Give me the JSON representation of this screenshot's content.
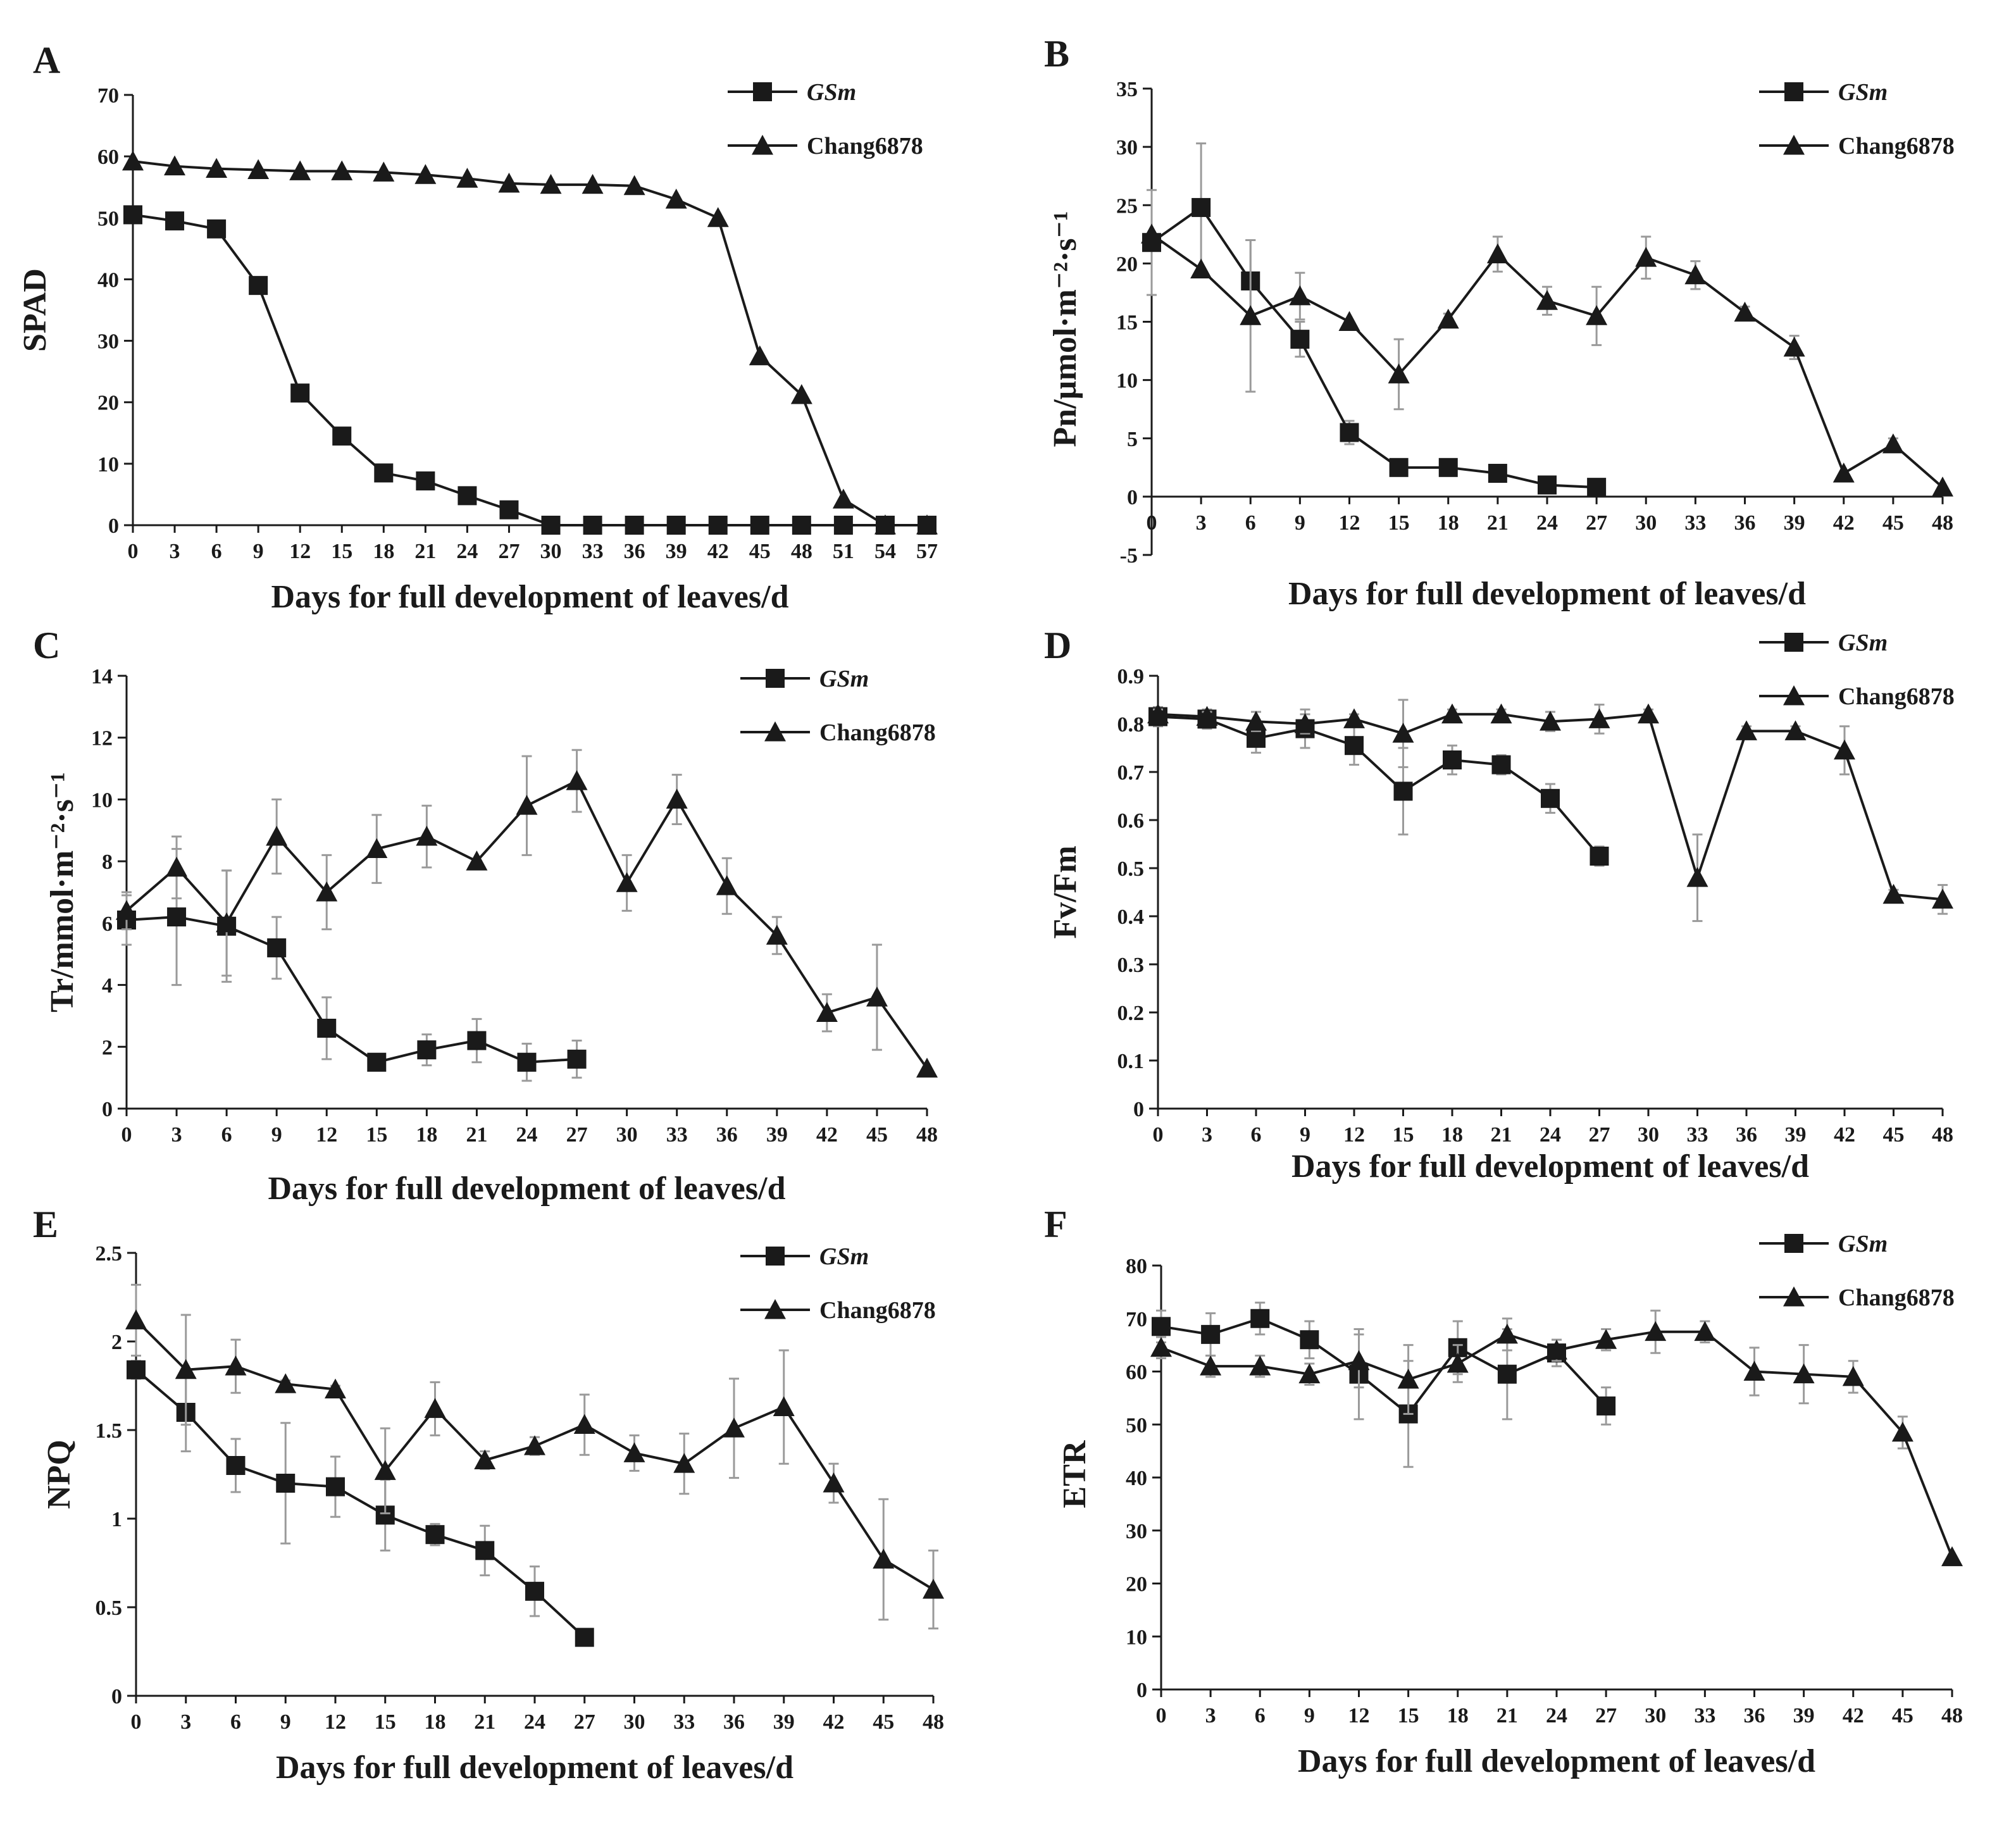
{
  "figure": {
    "series_names": {
      "gsm": "GSm",
      "chang": "Chang6878"
    },
    "colors": {
      "line": "#1a1a1a",
      "error": "#9a9a9a",
      "axis": "#1a1a1a"
    },
    "marker_names": {
      "gsm": "square-marker",
      "chang": "triangle-marker"
    }
  },
  "chart_data": [
    {
      "id": "A",
      "letter": "A",
      "type": "line",
      "xlabel": "Days for full development of leaves/d",
      "ylabel": "SPAD",
      "x_ticks": [
        0,
        3,
        6,
        9,
        12,
        15,
        18,
        21,
        24,
        27,
        30,
        33,
        36,
        39,
        42,
        45,
        48,
        51,
        54,
        57
      ],
      "xlim": [
        0,
        57
      ],
      "y_ticks": [
        0,
        10,
        20,
        30,
        40,
        50,
        60,
        70
      ],
      "y_tick_labels": [
        "0",
        "10",
        "20",
        "30",
        "40",
        "50",
        "60",
        "70"
      ],
      "ylim": [
        0,
        70
      ],
      "legend": [
        "GSm",
        "Chang6878"
      ],
      "series": [
        {
          "name": "GSm",
          "marker": "square",
          "x": [
            0,
            3,
            6,
            9,
            12,
            15,
            18,
            21,
            24,
            27,
            30,
            33,
            36,
            39,
            42,
            45,
            48,
            51,
            54,
            57
          ],
          "values": [
            50.5,
            49.5,
            48.2,
            39,
            21.5,
            14.5,
            8.5,
            7.2,
            4.8,
            2.5,
            0,
            0,
            0,
            0,
            0,
            0,
            0,
            0,
            0,
            0
          ],
          "errors": [
            0,
            0,
            0,
            0,
            0,
            0,
            0,
            0,
            0,
            0,
            0,
            0,
            0,
            0,
            0,
            0,
            0,
            0,
            0,
            0
          ]
        },
        {
          "name": "Chang6878",
          "marker": "triangle",
          "x": [
            0,
            3,
            6,
            9,
            12,
            15,
            18,
            21,
            24,
            27,
            30,
            33,
            36,
            39,
            42,
            45,
            48,
            51,
            54,
            57
          ],
          "values": [
            59.2,
            58.4,
            58,
            57.8,
            57.6,
            57.6,
            57.4,
            57,
            56.4,
            55.6,
            55.4,
            55.4,
            55.2,
            53,
            50,
            27.5,
            21.2,
            4.2,
            0,
            0
          ],
          "errors": [
            0,
            0,
            0,
            0,
            0,
            0,
            0,
            0,
            0,
            0,
            0,
            0,
            0,
            0,
            0,
            0,
            0,
            0,
            0,
            0
          ]
        }
      ]
    },
    {
      "id": "B",
      "letter": "B",
      "type": "line",
      "xlabel": "Days for full development of leaves/d",
      "ylabel": "Pn/µmol·m⁻²·s⁻¹",
      "x_ticks": [
        0,
        3,
        6,
        9,
        12,
        15,
        18,
        21,
        24,
        27,
        30,
        33,
        36,
        39,
        42,
        45,
        48
      ],
      "xlim": [
        0,
        48
      ],
      "y_ticks": [
        -5,
        0,
        5,
        10,
        15,
        20,
        25,
        30,
        35
      ],
      "y_tick_labels": [
        "-5",
        "0",
        "5",
        "10",
        "15",
        "20",
        "25",
        "30",
        "35"
      ],
      "ylim": [
        -5,
        35
      ],
      "legend": [
        "GSm",
        "Chang6878"
      ],
      "series": [
        {
          "name": "GSm",
          "marker": "square",
          "x": [
            0,
            3,
            6,
            9,
            12,
            15,
            18,
            21,
            24,
            27
          ],
          "values": [
            21.8,
            24.8,
            18.5,
            13.5,
            5.5,
            2.5,
            2.5,
            2,
            1,
            0.8
          ],
          "errors": [
            4.5,
            5.5,
            3.5,
            1.5,
            1,
            0.5,
            0.5,
            0.4,
            0.3,
            0.3
          ]
        },
        {
          "name": "Chang6878",
          "marker": "triangle",
          "x": [
            0,
            3,
            6,
            9,
            12,
            15,
            18,
            21,
            24,
            27,
            30,
            33,
            36,
            39,
            42,
            45,
            48
          ],
          "values": [
            22.5,
            19.5,
            15.5,
            17.2,
            15,
            10.5,
            15.2,
            20.8,
            16.8,
            15.5,
            20.5,
            19,
            15.8,
            12.8,
            2,
            4.5,
            0.8
          ],
          "errors": [
            0,
            0,
            6.5,
            2,
            0,
            3,
            0.5,
            1.5,
            1.2,
            2.5,
            1.8,
            1.2,
            0.5,
            1,
            0,
            0.5,
            0
          ]
        }
      ]
    },
    {
      "id": "C",
      "letter": "C",
      "type": "line",
      "xlabel": "Days for full development of leaves/d",
      "ylabel": "Tr/mmol·m⁻²·s⁻¹",
      "x_ticks": [
        0,
        3,
        6,
        9,
        12,
        15,
        18,
        21,
        24,
        27,
        30,
        33,
        36,
        39,
        42,
        45,
        48
      ],
      "xlim": [
        0,
        48
      ],
      "y_ticks": [
        0,
        2,
        4,
        6,
        8,
        10,
        12,
        14
      ],
      "y_tick_labels": [
        "0",
        "2",
        "4",
        "6",
        "8",
        "10",
        "12",
        "14"
      ],
      "ylim": [
        0,
        14
      ],
      "legend": [
        "GSm",
        "Chang6878"
      ],
      "series": [
        {
          "name": "GSm",
          "marker": "square",
          "x": [
            0,
            3,
            6,
            9,
            12,
            15,
            18,
            21,
            24,
            27
          ],
          "values": [
            6.1,
            6.2,
            5.9,
            5.2,
            2.6,
            1.5,
            1.9,
            2.2,
            1.5,
            1.6
          ],
          "errors": [
            0.8,
            2.2,
            1.8,
            1,
            1,
            0.2,
            0.5,
            0.7,
            0.6,
            0.6
          ]
        },
        {
          "name": "Chang6878",
          "marker": "triangle",
          "x": [
            0,
            3,
            6,
            9,
            12,
            15,
            18,
            21,
            24,
            27,
            30,
            33,
            36,
            39,
            42,
            45,
            48
          ],
          "values": [
            6.4,
            7.8,
            6,
            8.8,
            7,
            8.4,
            8.8,
            8,
            9.8,
            10.6,
            7.3,
            10,
            7.2,
            5.6,
            3.1,
            3.6,
            1.3
          ],
          "errors": [
            0.6,
            1,
            1.7,
            1.2,
            1.2,
            1.1,
            1,
            0,
            1.6,
            1,
            0.9,
            0.8,
            0.9,
            0.6,
            0.6,
            1.7,
            0
          ]
        }
      ]
    },
    {
      "id": "D",
      "letter": "D",
      "type": "line",
      "xlabel": "Days for full development of leaves/d",
      "ylabel": "Fv/Fm",
      "x_ticks": [
        0,
        3,
        6,
        9,
        12,
        15,
        18,
        21,
        24,
        27,
        30,
        33,
        36,
        39,
        42,
        45,
        48
      ],
      "xlim": [
        0,
        48
      ],
      "y_ticks": [
        0,
        0.1,
        0.2,
        0.3,
        0.4,
        0.5,
        0.6,
        0.7,
        0.8,
        0.9
      ],
      "y_tick_labels": [
        "0",
        "0.1",
        "0.2",
        "0.3",
        "0.4",
        "0.5",
        "0.6",
        "0.7",
        "0.8",
        "0.9"
      ],
      "ylim": [
        0,
        0.9
      ],
      "legend": [
        "GSm",
        "Chang6878"
      ],
      "series": [
        {
          "name": "GSm",
          "marker": "square",
          "x": [
            0,
            3,
            6,
            9,
            12,
            15,
            18,
            21,
            24,
            27
          ],
          "values": [
            0.815,
            0.81,
            0.77,
            0.79,
            0.755,
            0.66,
            0.725,
            0.715,
            0.645,
            0.525
          ],
          "errors": [
            0.02,
            0.02,
            0.03,
            0.04,
            0.04,
            0.09,
            0.03,
            0.02,
            0.03,
            0.02
          ]
        },
        {
          "name": "Chang6878",
          "marker": "triangle",
          "x": [
            0,
            3,
            6,
            9,
            12,
            15,
            18,
            21,
            24,
            27,
            30,
            33,
            36,
            39,
            42,
            45,
            48
          ],
          "values": [
            0.82,
            0.815,
            0.805,
            0.8,
            0.81,
            0.78,
            0.82,
            0.82,
            0.805,
            0.81,
            0.82,
            0.48,
            0.785,
            0.785,
            0.745,
            0.445,
            0.435
          ],
          "errors": [
            0.01,
            0.01,
            0.02,
            0.02,
            0.01,
            0.07,
            0.01,
            0.01,
            0.02,
            0.03,
            0.01,
            0.09,
            0.01,
            0.01,
            0.05,
            0.01,
            0.03
          ]
        }
      ]
    },
    {
      "id": "E",
      "letter": "E",
      "type": "line",
      "xlabel": "Days for full development of leaves/d",
      "ylabel": "NPQ",
      "x_ticks": [
        0,
        3,
        6,
        9,
        12,
        15,
        18,
        21,
        24,
        27,
        30,
        33,
        36,
        39,
        42,
        45,
        48
      ],
      "xlim": [
        0,
        48
      ],
      "y_ticks": [
        0,
        0.5,
        1,
        1.5,
        2,
        2.5
      ],
      "y_tick_labels": [
        "0",
        "0.5",
        "1",
        "1.5",
        "2",
        "2.5"
      ],
      "ylim": [
        0,
        2.5
      ],
      "legend": [
        "GSm",
        "Chang6878"
      ],
      "series": [
        {
          "name": "GSm",
          "marker": "square",
          "x": [
            0,
            3,
            6,
            9,
            12,
            15,
            18,
            21,
            24,
            27
          ],
          "values": [
            1.84,
            1.6,
            1.3,
            1.2,
            1.18,
            1.02,
            0.91,
            0.82,
            0.59,
            0.33
          ],
          "errors": [
            0.05,
            0.22,
            0.15,
            0.34,
            0.17,
            0.2,
            0.06,
            0.14,
            0.14,
            0.03
          ]
        },
        {
          "name": "Chang6878",
          "marker": "triangle",
          "x": [
            0,
            3,
            6,
            9,
            12,
            15,
            18,
            21,
            24,
            27,
            30,
            33,
            36,
            39,
            42,
            45,
            48
          ],
          "values": [
            2.12,
            1.84,
            1.86,
            1.76,
            1.73,
            1.27,
            1.62,
            1.33,
            1.41,
            1.53,
            1.37,
            1.31,
            1.51,
            1.63,
            1.2,
            0.77,
            0.6
          ],
          "errors": [
            0.2,
            0.31,
            0.15,
            0.02,
            0.02,
            0.24,
            0.15,
            0.05,
            0.05,
            0.17,
            0.1,
            0.17,
            0.28,
            0.32,
            0.11,
            0.34,
            0.22
          ]
        }
      ]
    },
    {
      "id": "F",
      "letter": "F",
      "type": "line",
      "xlabel": "Days for full development of leaves/d",
      "ylabel": "ETR",
      "x_ticks": [
        0,
        3,
        6,
        9,
        12,
        15,
        18,
        21,
        24,
        27,
        30,
        33,
        36,
        39,
        42,
        45,
        48
      ],
      "xlim": [
        0,
        48
      ],
      "y_ticks": [
        0,
        10,
        20,
        30,
        40,
        50,
        60,
        70,
        80
      ],
      "y_tick_labels": [
        "0",
        "10",
        "20",
        "30",
        "40",
        "50",
        "60",
        "70",
        "80"
      ],
      "ylim": [
        0,
        80
      ],
      "legend": [
        "GSm",
        "Chang6878"
      ],
      "series": [
        {
          "name": "GSm",
          "marker": "square",
          "x": [
            0,
            3,
            6,
            9,
            12,
            15,
            18,
            21,
            24,
            27
          ],
          "values": [
            68.5,
            67,
            70,
            66,
            59.5,
            52,
            64.5,
            59.5,
            63.5,
            53.5
          ],
          "errors": [
            3,
            4,
            3,
            3.5,
            8.5,
            10,
            5,
            8.5,
            2.5,
            3.5
          ]
        },
        {
          "name": "Chang6878",
          "marker": "triangle",
          "x": [
            0,
            3,
            6,
            9,
            12,
            15,
            18,
            21,
            24,
            27,
            30,
            33,
            36,
            39,
            42,
            45,
            48
          ],
          "values": [
            64.5,
            61,
            61,
            59.5,
            62,
            58.5,
            61.5,
            67,
            64,
            66,
            67.5,
            67.5,
            60,
            59.5,
            59,
            48.5,
            25
          ],
          "errors": [
            2,
            2,
            2,
            2,
            5,
            6.5,
            3.5,
            3,
            2,
            2,
            4,
            2,
            4.5,
            5.5,
            3,
            3,
            0
          ]
        }
      ]
    }
  ]
}
